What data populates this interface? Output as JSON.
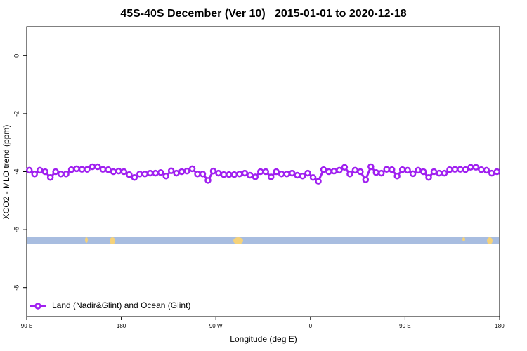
{
  "chart_data": {
    "type": "line",
    "title": "45S-40S December (Ver 10)   2015-01-01 to 2020-12-18",
    "xlabel": "Longitude (deg E)",
    "ylabel": "XCO2 - MLO trend (ppm)",
    "xlim": [
      90,
      540
    ],
    "ylim": [
      -9,
      1
    ],
    "xticks": [
      {
        "value": 90,
        "label": "90 E"
      },
      {
        "value": 180,
        "label": "180"
      },
      {
        "value": 270,
        "label": "90 W"
      },
      {
        "value": 360,
        "label": "0"
      },
      {
        "value": 450,
        "label": "90 E"
      },
      {
        "value": 540,
        "label": "180"
      }
    ],
    "yticks": [
      0,
      -2,
      -4,
      -6,
      -8
    ],
    "legend": "bottom-left",
    "x": [
      92.5,
      97.5,
      102.5,
      107.5,
      112.5,
      117.5,
      122.5,
      127.5,
      132.5,
      137.5,
      142.5,
      147.5,
      152.5,
      157.5,
      162.5,
      167.5,
      172.5,
      177.5,
      182.5,
      187.5,
      192.5,
      197.5,
      202.5,
      207.5,
      212.5,
      217.5,
      222.5,
      227.5,
      232.5,
      237.5,
      242.5,
      247.5,
      252.5,
      257.5,
      262.5,
      267.5,
      272.5,
      277.5,
      282.5,
      287.5,
      292.5,
      297.5,
      302.5,
      307.5,
      312.5,
      317.5,
      322.5,
      327.5,
      332.5,
      337.5,
      342.5,
      347.5,
      352.5,
      357.5,
      362.5,
      367.5,
      372.5,
      377.5,
      382.5,
      387.5,
      392.5,
      397.5,
      402.5,
      407.5,
      412.5,
      417.5,
      422.5,
      427.5,
      432.5,
      437.5,
      442.5,
      447.5,
      452.5,
      457.5,
      462.5,
      467.5,
      472.5,
      477.5,
      482.5,
      487.5,
      492.5,
      497.5,
      502.5,
      507.5,
      512.5,
      517.5,
      522.5,
      527.5,
      532.5,
      537.5
    ],
    "series": [
      {
        "name": "Land (Nadir&Glint) and Ocean (Glint)",
        "color": "#a020f0",
        "values": [
          -3.95,
          -4.08,
          -3.95,
          -4.0,
          -4.2,
          -4.0,
          -4.08,
          -4.08,
          -3.93,
          -3.9,
          -3.92,
          -3.92,
          -3.83,
          -3.83,
          -3.92,
          -3.93,
          -4.0,
          -3.98,
          -4.0,
          -4.1,
          -4.2,
          -4.08,
          -4.08,
          -4.05,
          -4.05,
          -4.03,
          -4.15,
          -3.97,
          -4.05,
          -4.0,
          -3.98,
          -3.9,
          -4.08,
          -4.08,
          -4.3,
          -3.98,
          -4.05,
          -4.1,
          -4.1,
          -4.1,
          -4.08,
          -4.05,
          -4.12,
          -4.18,
          -4.0,
          -4.0,
          -4.18,
          -4.0,
          -4.08,
          -4.08,
          -4.05,
          -4.12,
          -4.15,
          -4.05,
          -4.2,
          -4.33,
          -3.93,
          -4.0,
          -3.98,
          -3.95,
          -3.85,
          -4.08,
          -3.95,
          -4.0,
          -4.28,
          -3.83,
          -4.03,
          -4.05,
          -3.92,
          -3.93,
          -4.15,
          -3.93,
          -3.95,
          -4.07,
          -3.95,
          -4.0,
          -4.2,
          -4.0,
          -4.05,
          -4.05,
          -3.93,
          -3.92,
          -3.92,
          -3.93,
          -3.85,
          -3.85,
          -3.93,
          -3.95,
          -4.05,
          -4.0
        ]
      }
    ]
  }
}
